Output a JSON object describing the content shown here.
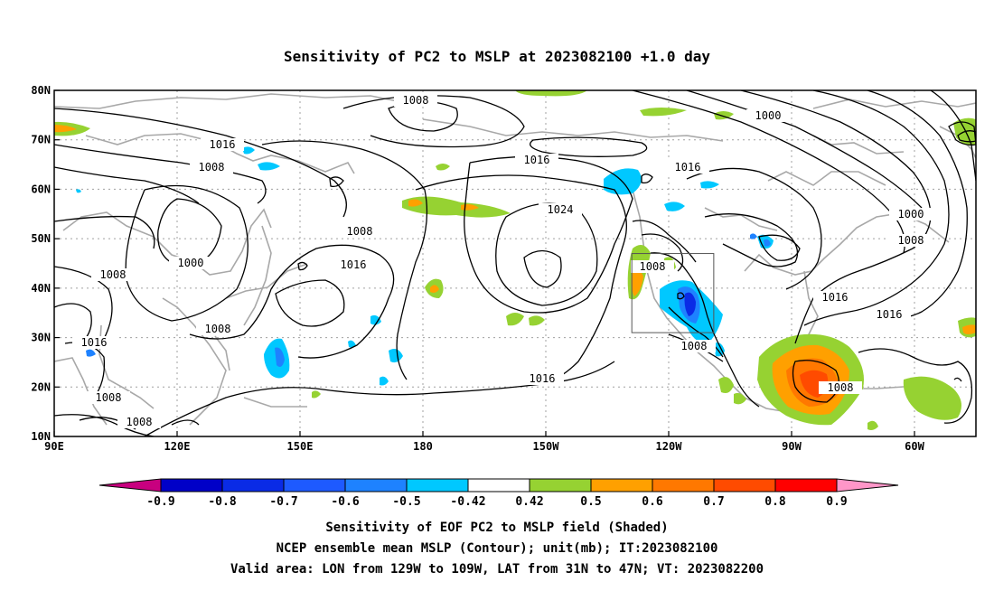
{
  "title": "Sensitivity of PC2 to MSLP at 2023082100 +1.0 day",
  "lat_labels": [
    "80N",
    "70N",
    "60N",
    "50N",
    "40N",
    "30N",
    "20N",
    "10N"
  ],
  "lon_labels": [
    "90E",
    "120E",
    "150E",
    "180",
    "150W",
    "120W",
    "90W",
    "60W"
  ],
  "colorbar": {
    "labels": [
      "-0.9",
      "-0.8",
      "-0.7",
      "-0.6",
      "-0.5",
      "-0.42",
      "0.42",
      "0.5",
      "0.6",
      "0.7",
      "0.8",
      "0.9"
    ],
    "colors": [
      "#c8007f",
      "#0000c8",
      "#0a2be6",
      "#1e5aff",
      "#1e82ff",
      "#00c8ff",
      "#ffffff",
      "#96d232",
      "#ffa000",
      "#ff7800",
      "#ff4b00",
      "#ff0000",
      "#ff96c8"
    ]
  },
  "contour_labels": [
    "1008",
    "1016",
    "1008",
    "1016",
    "1024",
    "1016",
    "1000",
    "1000",
    "1008",
    "1008",
    "1008",
    "1016",
    "1000",
    "1008",
    "1016",
    "1008",
    "1008",
    "1016",
    "1016",
    "1008",
    "1008",
    "1016",
    "1008"
  ],
  "valid_box": {
    "lon_min": -129,
    "lon_max": -109,
    "lat_min": 31,
    "lat_max": 47
  },
  "caption": [
    "Sensitivity of EOF PC2 to MSLP field (Shaded)",
    "NCEP ensemble mean MSLP (Contour); unit(mb); IT:2023082100",
    "Valid area: LON from 129W to 109W, LAT from 31N to 47N; VT: 2023082200"
  ]
}
